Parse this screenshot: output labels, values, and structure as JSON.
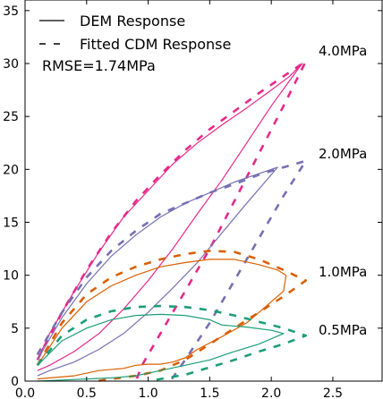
{
  "chart_data": {
    "type": "line",
    "xlim": [
      0.0,
      2.9
    ],
    "ylim": [
      0,
      36
    ],
    "x_ticks": [
      "0.0",
      "0.5",
      "1.0",
      "1.5",
      "2.0",
      "2.5"
    ],
    "x_tick_values": [
      0.0,
      0.5,
      1.0,
      1.5,
      2.0,
      2.5
    ],
    "y_ticks": [
      "0",
      "5",
      "10",
      "15",
      "20",
      "25",
      "30",
      "35"
    ],
    "y_tick_values": [
      0,
      5,
      10,
      15,
      20,
      25,
      30,
      35
    ],
    "grid": false,
    "legend": {
      "placement": "top-left",
      "entries": [
        {
          "label": "DEM Response",
          "style": "solid"
        },
        {
          "label": "Fitted CDM Response",
          "style": "dashed"
        }
      ],
      "note": "RMSE=1.74MPa"
    },
    "series": [
      {
        "pressure": "4.0MPa",
        "color": "#e7298a",
        "dem": [
          [
            0.1,
            2.0
          ],
          [
            0.2,
            4.5
          ],
          [
            0.4,
            8.5
          ],
          [
            0.6,
            12.2
          ],
          [
            0.8,
            15.5
          ],
          [
            1.0,
            18.0
          ],
          [
            1.2,
            20.5
          ],
          [
            1.4,
            22.5
          ],
          [
            1.6,
            24.2
          ],
          [
            1.8,
            25.8
          ],
          [
            2.0,
            27.5
          ],
          [
            2.15,
            28.8
          ],
          [
            2.25,
            30.0
          ],
          [
            2.0,
            26.0
          ],
          [
            1.8,
            22.5
          ],
          [
            1.6,
            19.0
          ],
          [
            1.4,
            15.8
          ],
          [
            1.2,
            12.5
          ],
          [
            1.0,
            9.5
          ],
          [
            0.8,
            6.8
          ],
          [
            0.6,
            4.5
          ],
          [
            0.4,
            2.8
          ],
          [
            0.2,
            1.5
          ],
          [
            0.1,
            1.0
          ]
        ],
        "cdm": [
          [
            0.1,
            2.0
          ],
          [
            0.3,
            6.5
          ],
          [
            0.5,
            10.5
          ],
          [
            0.7,
            14.0
          ],
          [
            0.9,
            17.0
          ],
          [
            1.1,
            19.5
          ],
          [
            1.3,
            21.8
          ],
          [
            1.5,
            23.8
          ],
          [
            1.7,
            25.5
          ],
          [
            1.9,
            27.2
          ],
          [
            2.1,
            28.8
          ],
          [
            2.28,
            30.2
          ],
          [
            2.1,
            26.0
          ],
          [
            1.9,
            21.5
          ],
          [
            1.7,
            17.0
          ],
          [
            1.5,
            12.5
          ],
          [
            1.3,
            8.5
          ],
          [
            1.1,
            4.5
          ],
          [
            0.95,
            1.5
          ],
          [
            0.9,
            0.0
          ]
        ]
      },
      {
        "pressure": "2.0MPa",
        "color": "#7570b3",
        "dem": [
          [
            0.1,
            2.0
          ],
          [
            0.3,
            6.0
          ],
          [
            0.5,
            9.2
          ],
          [
            0.7,
            11.8
          ],
          [
            0.9,
            13.8
          ],
          [
            1.1,
            15.5
          ],
          [
            1.3,
            16.8
          ],
          [
            1.5,
            17.8
          ],
          [
            1.7,
            18.8
          ],
          [
            1.9,
            19.6
          ],
          [
            2.05,
            20.2
          ],
          [
            2.0,
            19.5
          ],
          [
            1.8,
            16.8
          ],
          [
            1.6,
            14.0
          ],
          [
            1.4,
            11.2
          ],
          [
            1.2,
            8.8
          ],
          [
            1.0,
            6.5
          ],
          [
            0.8,
            4.5
          ],
          [
            0.6,
            3.0
          ],
          [
            0.4,
            1.8
          ],
          [
            0.2,
            1.0
          ],
          [
            0.1,
            0.5
          ]
        ],
        "cdm": [
          [
            0.1,
            2.5
          ],
          [
            0.3,
            6.5
          ],
          [
            0.5,
            9.8
          ],
          [
            0.7,
            12.3
          ],
          [
            0.9,
            14.2
          ],
          [
            1.1,
            15.8
          ],
          [
            1.3,
            16.8
          ],
          [
            1.5,
            17.8
          ],
          [
            1.7,
            18.6
          ],
          [
            1.9,
            19.5
          ],
          [
            2.1,
            20.2
          ],
          [
            2.28,
            20.8
          ],
          [
            2.1,
            17.5
          ],
          [
            1.9,
            13.5
          ],
          [
            1.7,
            9.5
          ],
          [
            1.5,
            5.5
          ],
          [
            1.3,
            2.0
          ],
          [
            1.18,
            0.0
          ]
        ]
      },
      {
        "pressure": "1.0MPa",
        "color": "#d95f02",
        "dem": [
          [
            0.1,
            1.5
          ],
          [
            0.3,
            5.0
          ],
          [
            0.5,
            7.5
          ],
          [
            0.7,
            9.0
          ],
          [
            0.9,
            10.0
          ],
          [
            1.1,
            10.8
          ],
          [
            1.3,
            11.2
          ],
          [
            1.5,
            11.5
          ],
          [
            1.7,
            11.5
          ],
          [
            1.9,
            11.0
          ],
          [
            2.05,
            10.5
          ],
          [
            2.12,
            10.0
          ],
          [
            2.1,
            8.5
          ],
          [
            1.95,
            7.0
          ],
          [
            1.8,
            5.5
          ],
          [
            1.6,
            4.2
          ],
          [
            1.4,
            3.0
          ],
          [
            1.3,
            2.2
          ],
          [
            1.2,
            1.8
          ],
          [
            1.1,
            1.6
          ],
          [
            1.0,
            1.6
          ],
          [
            0.9,
            1.5
          ],
          [
            0.8,
            1.2
          ],
          [
            0.6,
            1.0
          ],
          [
            0.4,
            0.5
          ],
          [
            0.2,
            0.3
          ],
          [
            0.1,
            0.2
          ]
        ],
        "cdm": [
          [
            0.1,
            1.5
          ],
          [
            0.3,
            5.5
          ],
          [
            0.5,
            8.2
          ],
          [
            0.7,
            9.8
          ],
          [
            0.9,
            10.8
          ],
          [
            1.1,
            11.5
          ],
          [
            1.3,
            12.0
          ],
          [
            1.5,
            12.3
          ],
          [
            1.7,
            12.2
          ],
          [
            1.9,
            11.5
          ],
          [
            2.1,
            10.5
          ],
          [
            2.28,
            9.5
          ],
          [
            2.1,
            8.0
          ],
          [
            1.9,
            6.5
          ],
          [
            1.7,
            5.0
          ],
          [
            1.5,
            3.5
          ],
          [
            1.3,
            2.0
          ],
          [
            1.1,
            1.0
          ],
          [
            0.9,
            0.5
          ],
          [
            0.7,
            0.2
          ],
          [
            0.58,
            0.0
          ]
        ]
      },
      {
        "pressure": "0.5MPa",
        "color": "#1b9e77",
        "dem": [
          [
            0.1,
            1.5
          ],
          [
            0.3,
            3.8
          ],
          [
            0.5,
            5.0
          ],
          [
            0.7,
            5.8
          ],
          [
            0.9,
            6.2
          ],
          [
            1.1,
            6.3
          ],
          [
            1.3,
            6.2
          ],
          [
            1.5,
            5.8
          ],
          [
            1.6,
            5.3
          ],
          [
            1.8,
            5.1
          ],
          [
            2.0,
            4.8
          ],
          [
            2.1,
            4.5
          ],
          [
            1.9,
            3.5
          ],
          [
            1.7,
            2.8
          ],
          [
            1.5,
            2.0
          ],
          [
            1.3,
            1.5
          ],
          [
            1.1,
            1.0
          ],
          [
            0.9,
            0.5
          ],
          [
            0.7,
            0.3
          ],
          [
            0.5,
            0.2
          ],
          [
            0.3,
            0.1
          ],
          [
            0.1,
            0.0
          ]
        ],
        "cdm": [
          [
            0.1,
            1.5
          ],
          [
            0.3,
            4.3
          ],
          [
            0.5,
            5.8
          ],
          [
            0.7,
            6.6
          ],
          [
            0.9,
            7.0
          ],
          [
            1.1,
            7.1
          ],
          [
            1.3,
            7.0
          ],
          [
            1.5,
            6.7
          ],
          [
            1.7,
            6.2
          ],
          [
            1.9,
            5.6
          ],
          [
            2.1,
            5.0
          ],
          [
            2.28,
            4.3
          ],
          [
            2.1,
            3.5
          ],
          [
            1.9,
            2.8
          ],
          [
            1.7,
            2.0
          ],
          [
            1.5,
            1.3
          ],
          [
            1.3,
            0.6
          ],
          [
            1.1,
            0.2
          ],
          [
            1.0,
            0.0
          ]
        ]
      }
    ]
  }
}
